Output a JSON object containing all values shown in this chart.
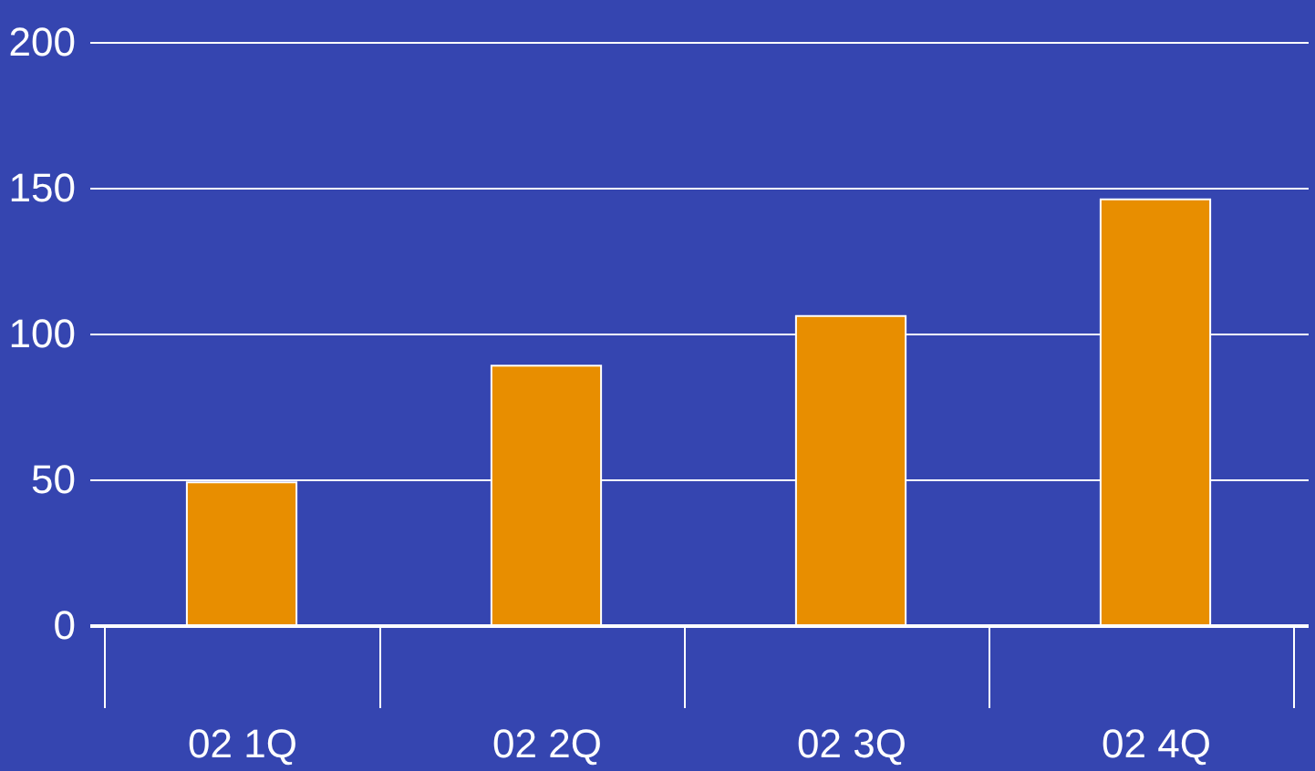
{
  "chart_data": {
    "type": "bar",
    "categories": [
      "02 1Q",
      "02 2Q",
      "02 3Q",
      "02 4Q"
    ],
    "values": [
      49,
      89,
      106,
      146
    ],
    "color": "#e88e00",
    "ylim": [
      0,
      200
    ],
    "yticks": [
      0,
      50,
      100,
      150,
      200
    ],
    "grid": "y"
  }
}
